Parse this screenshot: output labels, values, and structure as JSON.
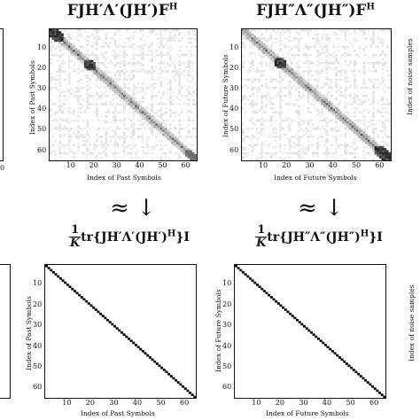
{
  "panels": [
    {
      "id": "tl",
      "title_html": "FJH′Λ′(JH′)F<sup>H</sup>",
      "xlabel": "Index of Past Symbols",
      "ylabel": "Index of Past Symbols",
      "xticks": [
        "10",
        "20",
        "30",
        "40",
        "50",
        "60"
      ],
      "yticks": [
        "10",
        "20",
        "30",
        "40",
        "50",
        "60"
      ],
      "kind": "noisy"
    },
    {
      "id": "tr",
      "title_html": "FJH″Λ″(JH″)F<sup>H</sup>",
      "xlabel": "Index of Future Symbols",
      "ylabel": "Index of Future Symbols",
      "xticks": [
        "10",
        "20",
        "30",
        "40",
        "50",
        "60"
      ],
      "yticks": [
        "10",
        "20",
        "30",
        "40",
        "50",
        "60"
      ],
      "kind": "noisy"
    },
    {
      "id": "bl",
      "title_html": "tr{JH′Λ′(JH′)<sup>H</sup>}I",
      "xlabel": "Index of Past Symbols",
      "ylabel": "Index of Past Symbols",
      "xticks": [
        "10",
        "20",
        "30",
        "40",
        "50",
        "60"
      ],
      "yticks": [
        "10",
        "20",
        "30",
        "40",
        "50",
        "60"
      ],
      "kind": "identity"
    },
    {
      "id": "br",
      "title_html": "tr{JH″Λ″(JH″)<sup>H</sup>}I",
      "xlabel": "Index of Future Symbols",
      "ylabel": "Index of Future Symbols",
      "xticks": [
        "10",
        "20",
        "30",
        "40",
        "50",
        "60"
      ],
      "yticks": [
        "10",
        "20",
        "30",
        "40",
        "50",
        "60"
      ],
      "kind": "identity"
    }
  ],
  "fraction": {
    "num": "1",
    "den": "K"
  },
  "approx_symbol": "≈ ↓",
  "side_labels": {
    "right_ylabel": "Index of noise samples",
    "left_tick": "0"
  }
}
